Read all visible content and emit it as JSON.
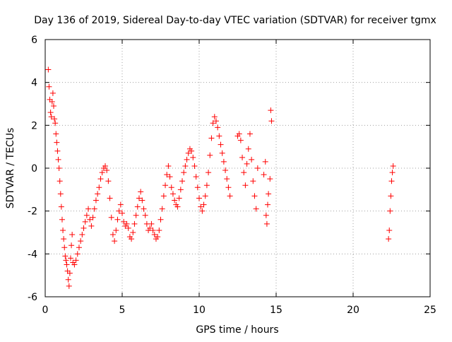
{
  "chart_data": {
    "type": "scatter",
    "title": "Day 136 of 2019, Sidereal Day-to-day VTEC variation (SDTVAR) for receiver tgmx",
    "xlabel": "GPS time / hours",
    "ylabel": "SDTVAR / TECUs",
    "xlim": [
      0,
      25
    ],
    "ylim": [
      -6,
      6
    ],
    "xticks": [
      0,
      5,
      10,
      15,
      20,
      25
    ],
    "yticks": [
      -6,
      -4,
      -2,
      0,
      2,
      4,
      6
    ],
    "grid": true,
    "marker": "+",
    "color": "#ff0000",
    "series": [
      {
        "name": "tgmx",
        "x": [
          0.2,
          0.25,
          0.3,
          0.35,
          0.4,
          0.45,
          0.5,
          0.55,
          0.6,
          0.65,
          0.7,
          0.75,
          0.8,
          0.85,
          0.9,
          0.95,
          1.0,
          1.05,
          1.1,
          1.15,
          1.2,
          1.25,
          1.3,
          1.35,
          1.4,
          1.45,
          1.5,
          1.55,
          1.6,
          1.65,
          1.7,
          1.75,
          1.8,
          1.9,
          2.0,
          2.1,
          2.2,
          2.3,
          2.4,
          2.5,
          2.6,
          2.7,
          2.8,
          2.9,
          3.0,
          3.1,
          3.2,
          3.3,
          3.4,
          3.5,
          3.6,
          3.7,
          3.8,
          3.9,
          4.0,
          4.1,
          4.2,
          4.3,
          4.4,
          4.5,
          4.6,
          4.7,
          4.8,
          4.9,
          5.0,
          5.1,
          5.2,
          5.3,
          5.4,
          5.5,
          5.6,
          5.7,
          5.8,
          5.9,
          6.0,
          6.1,
          6.2,
          6.3,
          6.4,
          6.5,
          6.6,
          6.7,
          6.8,
          6.9,
          7.0,
          7.1,
          7.2,
          7.3,
          7.4,
          7.5,
          7.6,
          7.7,
          7.8,
          7.9,
          8.0,
          8.1,
          8.2,
          8.3,
          8.4,
          8.5,
          8.6,
          8.7,
          8.8,
          8.9,
          9.0,
          9.1,
          9.2,
          9.3,
          9.4,
          9.5,
          9.6,
          9.7,
          9.8,
          9.9,
          10.0,
          10.1,
          10.2,
          10.3,
          10.4,
          10.5,
          10.6,
          10.7,
          10.8,
          10.9,
          11.0,
          11.1,
          11.2,
          11.3,
          11.4,
          11.5,
          11.6,
          11.7,
          11.8,
          11.9,
          12.0,
          12.5,
          12.6,
          12.7,
          12.8,
          12.9,
          13.0,
          13.1,
          13.2,
          13.3,
          13.4,
          13.5,
          13.6,
          13.7,
          13.8,
          14.2,
          14.3,
          14.35,
          14.4,
          14.45,
          14.5,
          14.6,
          14.65,
          14.7,
          22.3,
          22.35,
          22.4,
          22.45,
          22.5,
          22.55,
          22.6
        ],
        "y": [
          4.6,
          3.8,
          3.2,
          2.6,
          2.4,
          3.1,
          3.5,
          2.9,
          2.3,
          2.1,
          1.6,
          1.2,
          0.8,
          0.4,
          0.0,
          -0.6,
          -1.2,
          -1.8,
          -2.4,
          -2.9,
          -3.3,
          -3.7,
          -4.1,
          -4.3,
          -4.5,
          -4.8,
          -5.2,
          -5.5,
          -4.9,
          -4.2,
          -3.6,
          -3.1,
          -4.4,
          -4.5,
          -4.3,
          -4.0,
          -3.7,
          -3.4,
          -3.1,
          -2.8,
          -2.5,
          -2.2,
          -1.9,
          -2.4,
          -2.7,
          -2.3,
          -1.9,
          -1.5,
          -1.2,
          -0.9,
          -0.5,
          -0.2,
          0.0,
          0.1,
          -0.1,
          -0.6,
          -1.4,
          -2.3,
          -3.1,
          -3.4,
          -2.9,
          -2.4,
          -2.0,
          -1.7,
          -2.1,
          -2.5,
          -2.7,
          -2.6,
          -2.8,
          -3.2,
          -3.3,
          -3.0,
          -2.6,
          -2.2,
          -1.8,
          -1.4,
          -1.1,
          -1.5,
          -1.9,
          -2.2,
          -2.6,
          -2.9,
          -2.8,
          -2.6,
          -2.9,
          -3.1,
          -3.3,
          -3.2,
          -2.9,
          -2.4,
          -1.9,
          -1.3,
          -0.8,
          -0.3,
          0.1,
          -0.4,
          -0.9,
          -1.2,
          -1.5,
          -1.7,
          -1.8,
          -1.4,
          -1.0,
          -0.6,
          -0.2,
          0.1,
          0.4,
          0.7,
          0.9,
          0.8,
          0.5,
          0.1,
          -0.4,
          -0.9,
          -1.4,
          -1.8,
          -2.0,
          -1.7,
          -1.3,
          -0.8,
          -0.2,
          0.6,
          1.4,
          2.1,
          2.4,
          2.2,
          1.9,
          1.5,
          1.1,
          0.7,
          0.3,
          -0.1,
          -0.5,
          -0.9,
          -1.3,
          1.5,
          1.6,
          1.3,
          0.5,
          -0.2,
          -0.8,
          0.2,
          0.9,
          1.6,
          0.4,
          -0.6,
          -1.3,
          -1.9,
          0.0,
          -0.3,
          0.3,
          -2.2,
          -2.6,
          -1.7,
          -1.2,
          -0.5,
          2.7,
          2.2,
          -3.3,
          -2.9,
          -2.0,
          -1.3,
          -0.6,
          -0.2,
          0.1
        ]
      }
    ]
  }
}
